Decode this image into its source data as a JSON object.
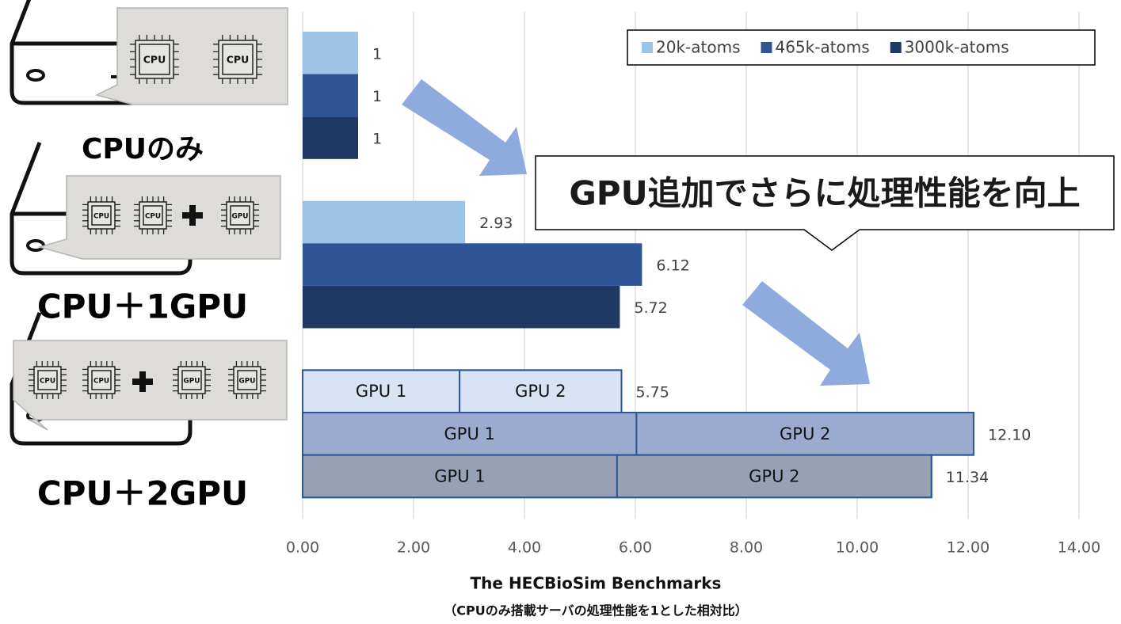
{
  "chart_data": {
    "type": "bar",
    "categories": [
      "CPUのみ",
      "CPU＋1GPU",
      "CPU＋2GPU"
    ],
    "series": [
      {
        "name": "20k-atoms",
        "color": "#9dc3e6",
        "segment_color": "#d6e4f5",
        "values": [
          1,
          2.93,
          5.75
        ],
        "value_labels": [
          "1",
          "2.93",
          "5.75"
        ],
        "segments": [
          2.83,
          2.92
        ]
      },
      {
        "name": "465k-atoms",
        "color": "#2f5597",
        "segment_color": "#9aabcf",
        "values": [
          1,
          6.12,
          12.1
        ],
        "value_labels": [
          "1",
          "6.12",
          "12.10"
        ],
        "segments": [
          6.02,
          6.08
        ]
      },
      {
        "name": "3000k-atoms",
        "color": "#203864",
        "segment_color": "#96a1b6",
        "values": [
          1,
          5.72,
          11.34
        ],
        "value_labels": [
          "1",
          "5.72",
          "11.34"
        ],
        "segments": [
          5.67,
          5.67
        ]
      }
    ],
    "segment_labels": [
      "GPU 1",
      "GPU 2"
    ],
    "chip_labels": [
      "CPU",
      "GPU"
    ],
    "xlim": [
      0,
      14
    ],
    "xticks": [
      {
        "value": 0,
        "label": "0.00"
      },
      {
        "value": 2,
        "label": "2.00"
      },
      {
        "value": 4,
        "label": "4.00"
      },
      {
        "value": 6,
        "label": "6.00"
      },
      {
        "value": 8,
        "label": "8.00"
      },
      {
        "value": 10,
        "label": "10.00"
      },
      {
        "value": 12,
        "label": "12.00"
      },
      {
        "value": 14,
        "label": "14.00"
      }
    ],
    "grid": true,
    "legend": "top-right",
    "x_label": "The HECBioSim Benchmarks",
    "x_sublabel": "（CPUのみ搭載サーバの処理性能を1とした相対比）",
    "annotation": "GPU追加でさらに処理性能を向上"
  }
}
